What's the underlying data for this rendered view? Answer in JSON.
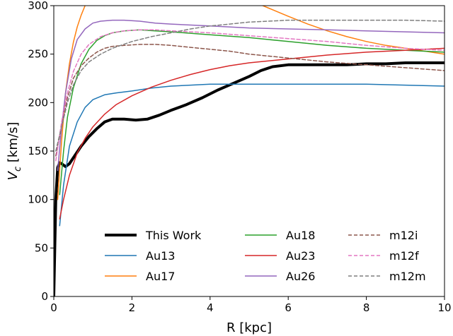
{
  "chart_data": {
    "type": "line",
    "xlabel": "R [kpc]",
    "ylabel_main": "V",
    "ylabel_sub": "c",
    "ylabel_unit": " [km/s]",
    "xlim": [
      0,
      10
    ],
    "ylim": [
      0,
      300
    ],
    "xticks": [
      0,
      2,
      4,
      6,
      8,
      10
    ],
    "yticks": [
      0,
      50,
      100,
      150,
      200,
      250,
      300
    ],
    "grid": false,
    "legend_position": "bottom-right",
    "series": [
      {
        "name": "This Work",
        "color": "#000000",
        "width": 4,
        "dash": "",
        "x": [
          0.0,
          0.05,
          0.1,
          0.15,
          0.2,
          0.3,
          0.4,
          0.5,
          0.7,
          0.9,
          1.1,
          1.3,
          1.5,
          1.8,
          2.1,
          2.4,
          2.7,
          3.0,
          3.4,
          3.8,
          4.2,
          4.6,
          5.0,
          5.3,
          5.6,
          6.0,
          6.5,
          7.0,
          7.5,
          8.0,
          8.5,
          9.0,
          9.5,
          10.0
        ],
        "y": [
          0,
          100,
          133,
          138,
          137,
          134,
          137,
          143,
          155,
          165,
          173,
          180,
          183,
          183,
          182,
          183,
          187,
          192,
          198,
          205,
          213,
          220,
          227,
          233,
          237,
          239,
          239,
          239,
          239,
          240,
          240,
          241,
          241,
          241
        ]
      },
      {
        "name": "Au13",
        "color": "#1f77b4",
        "width": 1.5,
        "dash": "",
        "x": [
          0.15,
          0.25,
          0.4,
          0.6,
          0.8,
          1.0,
          1.3,
          1.6,
          2.0,
          2.5,
          3.0,
          3.5,
          4.0,
          4.5,
          5.0,
          5.5,
          6.0,
          7.0,
          8.0,
          9.0,
          10.0
        ],
        "y": [
          73,
          115,
          155,
          180,
          195,
          203,
          208,
          210,
          212,
          215,
          217,
          218,
          219,
          219,
          219,
          219,
          219,
          219,
          219,
          218,
          217
        ]
      },
      {
        "name": "Au17",
        "color": "#ff7f0e",
        "width": 1.5,
        "dash": "",
        "x": [
          0.1,
          0.2,
          0.3,
          0.4,
          0.5,
          0.6,
          0.7,
          0.8
        ],
        "y": [
          100,
          160,
          210,
          240,
          262,
          278,
          290,
          300
        ]
      },
      {
        "name": "Au17 (outer)",
        "color": "#ff7f0e",
        "width": 1.5,
        "dash": "",
        "x": [
          5.35,
          6.0,
          6.5,
          7.0,
          7.5,
          8.0,
          8.5,
          9.0,
          9.5,
          10.0
        ],
        "y": [
          300,
          289,
          281,
          274,
          268,
          263,
          259,
          256,
          253,
          250
        ]
      },
      {
        "name": "Au18",
        "color": "#2ca02c",
        "width": 1.5,
        "dash": "",
        "x": [
          0.15,
          0.25,
          0.35,
          0.5,
          0.7,
          0.9,
          1.1,
          1.3,
          1.5,
          1.8,
          2.2,
          2.6,
          3.0,
          4.0,
          5.0,
          6.0,
          7.0,
          8.0,
          9.0,
          10.0
        ],
        "y": [
          105,
          150,
          185,
          215,
          240,
          255,
          264,
          269,
          272,
          274,
          275,
          274,
          273,
          270,
          267,
          263,
          259,
          256,
          254,
          252
        ]
      },
      {
        "name": "Au23",
        "color": "#d62728",
        "width": 1.5,
        "dash": "",
        "x": [
          0.15,
          0.25,
          0.4,
          0.6,
          0.8,
          1.0,
          1.3,
          1.6,
          2.0,
          2.5,
          3.0,
          3.5,
          4.0,
          4.5,
          5.0,
          5.5,
          6.0,
          6.5,
          7.0,
          8.0,
          9.0,
          10.0
        ],
        "y": [
          80,
          100,
          125,
          148,
          163,
          175,
          188,
          198,
          207,
          216,
          223,
          229,
          234,
          238,
          241,
          243,
          245,
          247,
          249,
          252,
          254,
          256
        ]
      },
      {
        "name": "Au26",
        "color": "#9467bd",
        "width": 1.5,
        "dash": "",
        "x": [
          0.1,
          0.2,
          0.3,
          0.45,
          0.6,
          0.8,
          1.0,
          1.2,
          1.5,
          1.8,
          2.2,
          2.6,
          3.0,
          4.0,
          5.0,
          6.0,
          7.0,
          8.0,
          9.0,
          10.0
        ],
        "y": [
          130,
          175,
          210,
          245,
          265,
          276,
          282,
          284,
          285,
          285,
          284,
          282,
          281,
          279,
          277,
          276,
          275,
          274,
          273,
          272
        ]
      },
      {
        "name": "m12i",
        "color": "#8c564b",
        "width": 1.5,
        "dash": "5,3",
        "x": [
          0.05,
          0.2,
          0.35,
          0.5,
          0.7,
          0.9,
          1.1,
          1.3,
          1.5,
          1.8,
          2.2,
          2.6,
          3.0,
          3.5,
          4.0,
          4.5,
          5.0,
          6.0,
          7.0,
          8.0,
          9.0,
          10.0
        ],
        "y": [
          145,
          175,
          205,
          225,
          238,
          246,
          252,
          256,
          258,
          259,
          260,
          260,
          259,
          257,
          255,
          253,
          250,
          246,
          242,
          239,
          236,
          233
        ]
      },
      {
        "name": "m12f",
        "color": "#e377c2",
        "width": 1.5,
        "dash": "5,3",
        "x": [
          0.05,
          0.2,
          0.35,
          0.5,
          0.7,
          0.9,
          1.2,
          1.5,
          1.8,
          2.2,
          2.6,
          3.0,
          3.5,
          4.0,
          5.0,
          6.0,
          7.0,
          8.0,
          9.0,
          10.0
        ],
        "y": [
          140,
          180,
          210,
          232,
          250,
          260,
          268,
          272,
          274,
          275,
          275,
          274,
          273,
          272,
          269,
          266,
          263,
          259,
          256,
          254
        ]
      },
      {
        "name": "m12m",
        "color": "#7f7f7f",
        "width": 1.5,
        "dash": "5,3",
        "x": [
          0.05,
          0.2,
          0.35,
          0.5,
          0.7,
          0.9,
          1.2,
          1.5,
          2.0,
          2.5,
          3.0,
          3.5,
          4.0,
          4.5,
          5.0,
          5.5,
          6.0,
          7.0,
          8.0,
          9.0,
          10.0
        ],
        "y": [
          150,
          175,
          200,
          218,
          233,
          242,
          250,
          256,
          263,
          268,
          272,
          276,
          279,
          281,
          283,
          284,
          285,
          285,
          285,
          285,
          284
        ]
      }
    ],
    "legend": [
      {
        "label": "This Work",
        "color": "#000000",
        "width": 4,
        "dash": ""
      },
      {
        "label": "Au13",
        "color": "#1f77b4",
        "width": 1.5,
        "dash": ""
      },
      {
        "label": "Au17",
        "color": "#ff7f0e",
        "width": 1.5,
        "dash": ""
      },
      {
        "label": "Au18",
        "color": "#2ca02c",
        "width": 1.5,
        "dash": ""
      },
      {
        "label": "Au23",
        "color": "#d62728",
        "width": 1.5,
        "dash": ""
      },
      {
        "label": "Au26",
        "color": "#9467bd",
        "width": 1.5,
        "dash": ""
      },
      {
        "label": "m12i",
        "color": "#8c564b",
        "width": 1.5,
        "dash": "5,3"
      },
      {
        "label": "m12f",
        "color": "#e377c2",
        "width": 1.5,
        "dash": "5,3"
      },
      {
        "label": "m12m",
        "color": "#7f7f7f",
        "width": 1.5,
        "dash": "5,3"
      }
    ]
  }
}
